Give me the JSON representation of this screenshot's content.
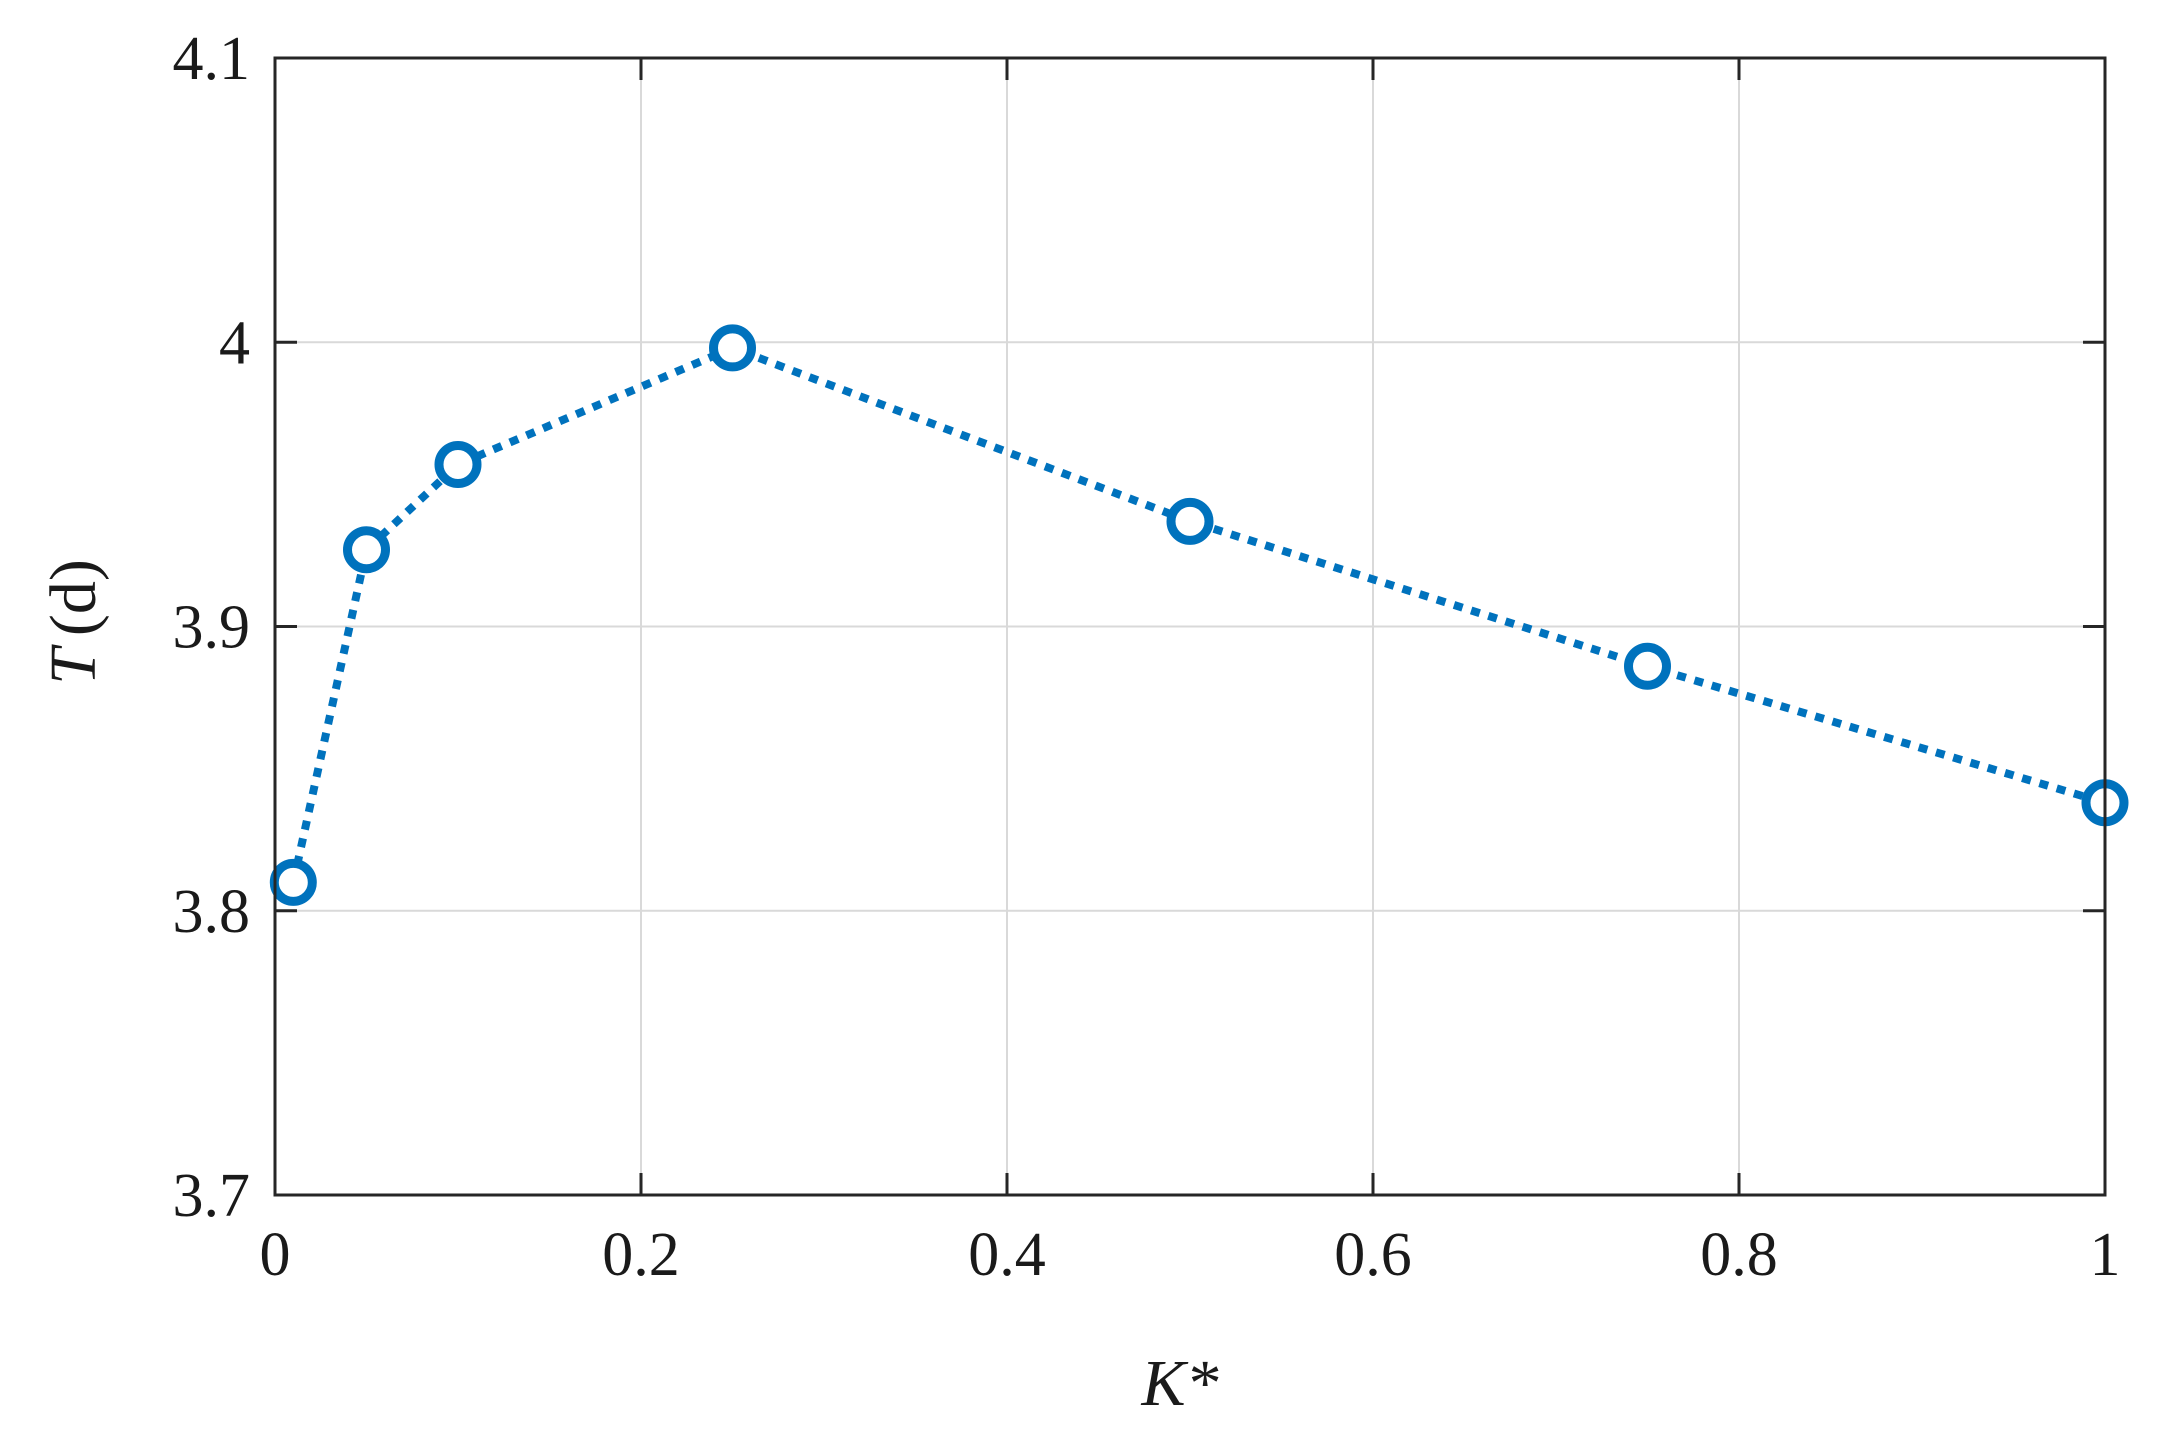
{
  "chart_data": {
    "type": "line",
    "xlabel": "K*",
    "ylabel_symbol": "T",
    "ylabel_unit": "(d)",
    "xlim": [
      0,
      1
    ],
    "ylim": [
      3.7,
      4.1
    ],
    "x_ticks": [
      0,
      0.2,
      0.4,
      0.6,
      0.8,
      1
    ],
    "x_tick_labels": [
      "0",
      "0.2",
      "0.4",
      "0.6",
      "0.8",
      "1"
    ],
    "y_ticks": [
      3.7,
      3.8,
      3.9,
      4.0,
      4.1
    ],
    "y_tick_labels": [
      "3.7",
      "3.8",
      "3.9",
      "4",
      "4.1"
    ],
    "grid": true,
    "series": [
      {
        "x": [
          0.01,
          0.05,
          0.1,
          0.25,
          0.5,
          0.75,
          1.0
        ],
        "y": [
          3.81,
          3.927,
          3.957,
          3.998,
          3.937,
          3.886,
          3.838
        ],
        "line_style": "dotted",
        "marker": "circle-open",
        "color": "#0072BD"
      }
    ]
  }
}
